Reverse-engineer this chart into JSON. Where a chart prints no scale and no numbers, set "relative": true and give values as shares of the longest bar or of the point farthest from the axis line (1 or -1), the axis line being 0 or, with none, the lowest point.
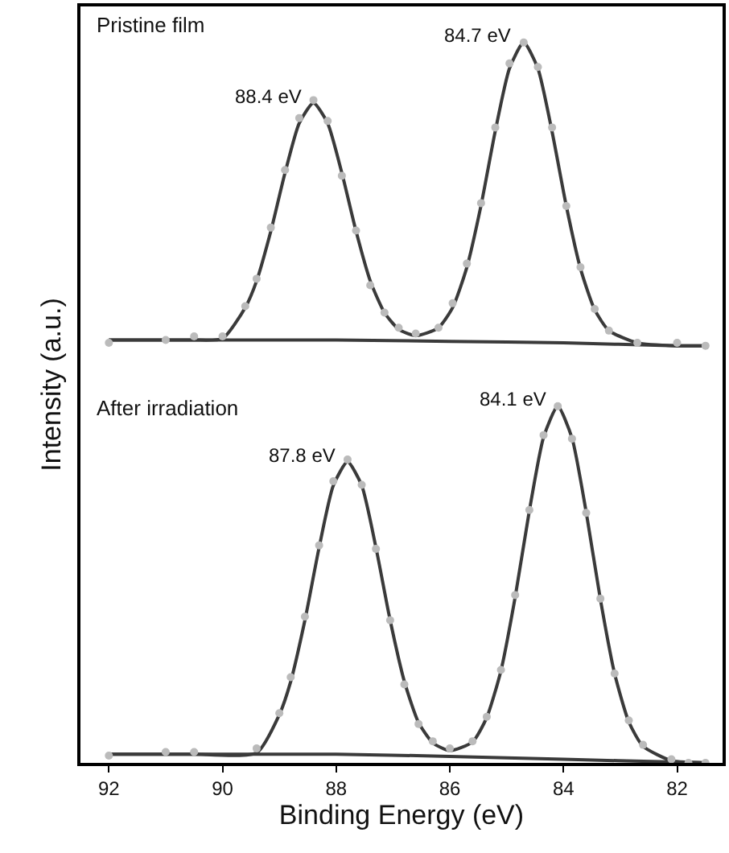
{
  "chart_data": {
    "type": "line",
    "title": "Pristine film",
    "xlabel": "Binding Energy (eV)",
    "ylabel": "Intensity (a.u.)",
    "relative": true,
    "xlim": [
      92.5,
      81.2
    ],
    "xticks": [
      92,
      90,
      88,
      86,
      84,
      82
    ],
    "series": [
      {
        "type": "scatter",
        "marker": "circle",
        "color": "#bbbbbb",
        "x": [
          92,
          91,
          90.5,
          90,
          89.6,
          89.4,
          89.15,
          88.9,
          88.65,
          88.4,
          88.15,
          87.9,
          87.65,
          87.4,
          87.15,
          86.9,
          86.6,
          86.2,
          85.95,
          85.7,
          85.45,
          85.2,
          84.95,
          84.7,
          84.45,
          84.2,
          83.95,
          83.7,
          83.45,
          83.2,
          82.7,
          82,
          81.5
        ],
        "values": [
          0.583,
          0.587,
          0.592,
          0.592,
          0.634,
          0.672,
          0.743,
          0.823,
          0.895,
          0.92,
          0.891,
          0.815,
          0.739,
          0.663,
          0.625,
          0.604,
          0.596,
          0.604,
          0.638,
          0.693,
          0.777,
          0.882,
          0.971,
          1.0,
          0.966,
          0.882,
          0.773,
          0.688,
          0.63,
          0.6,
          0.583,
          0.583,
          0.579
        ]
      },
      {
        "type": "line",
        "color": "#3a3a3a",
        "x": [
          92,
          91,
          90.5,
          90,
          89.6,
          89.4,
          89.15,
          88.9,
          88.65,
          88.4,
          88.15,
          87.9,
          87.65,
          87.4,
          87.15,
          86.9,
          86.6,
          86.2,
          85.95,
          85.7,
          85.45,
          85.2,
          84.95,
          84.7,
          84.45,
          84.2,
          83.95,
          83.7,
          83.45,
          83.2,
          82.7,
          82,
          81.5
        ],
        "values": [
          0.587,
          0.587,
          0.587,
          0.589,
          0.632,
          0.669,
          0.738,
          0.819,
          0.888,
          0.916,
          0.888,
          0.819,
          0.738,
          0.669,
          0.625,
          0.602,
          0.593,
          0.604,
          0.632,
          0.688,
          0.774,
          0.877,
          0.964,
          1.0,
          0.964,
          0.876,
          0.773,
          0.686,
          0.629,
          0.6,
          0.583,
          0.579,
          0.579
        ]
      },
      {
        "type": "line",
        "color": "#3a3a3a",
        "x": [
          92,
          88,
          86,
          84,
          82,
          81.5
        ],
        "values": [
          0.587,
          0.587,
          0.585,
          0.583,
          0.579,
          0.579
        ]
      },
      {
        "type": "scatter",
        "marker": "circle",
        "color": "#bbbbbb",
        "x": [
          92,
          91,
          90.5,
          89.4,
          89.0,
          88.8,
          88.55,
          88.3,
          88.05,
          87.8,
          87.55,
          87.3,
          87.05,
          86.8,
          86.55,
          86.3,
          86.0,
          85.6,
          85.35,
          85.1,
          84.85,
          84.6,
          84.35,
          84.1,
          83.85,
          83.6,
          83.35,
          83.1,
          82.85,
          82.6,
          82.1,
          81.8,
          81.5
        ],
        "values": [
          0.01,
          0.015,
          0.015,
          0.02,
          0.069,
          0.119,
          0.203,
          0.302,
          0.391,
          0.421,
          0.386,
          0.297,
          0.198,
          0.109,
          0.054,
          0.03,
          0.02,
          0.03,
          0.064,
          0.129,
          0.233,
          0.351,
          0.455,
          0.495,
          0.45,
          0.347,
          0.228,
          0.124,
          0.059,
          0.025,
          0.005,
          0.0,
          0.0
        ]
      },
      {
        "type": "line",
        "color": "#3a3a3a",
        "x": [
          92,
          91,
          90.5,
          89.4,
          89.0,
          88.8,
          88.55,
          88.3,
          88.05,
          87.8,
          87.55,
          87.3,
          87.05,
          86.8,
          86.55,
          86.3,
          86.0,
          85.6,
          85.35,
          85.1,
          84.85,
          84.6,
          84.35,
          84.1,
          83.85,
          83.6,
          83.35,
          83.1,
          82.85,
          82.6,
          82.1,
          81.8,
          81.5
        ],
        "values": [
          0.012,
          0.012,
          0.012,
          0.014,
          0.067,
          0.113,
          0.198,
          0.299,
          0.385,
          0.418,
          0.385,
          0.299,
          0.198,
          0.113,
          0.056,
          0.028,
          0.017,
          0.029,
          0.063,
          0.128,
          0.23,
          0.35,
          0.452,
          0.495,
          0.451,
          0.348,
          0.227,
          0.124,
          0.057,
          0.023,
          0.003,
          0.001,
          0.0
        ]
      },
      {
        "type": "line",
        "color": "#3a3a3a",
        "x": [
          92,
          88,
          86,
          84,
          82,
          81.5
        ],
        "values": [
          0.012,
          0.012,
          0.009,
          0.005,
          0.001,
          0.0
        ]
      }
    ],
    "annotations": [
      "After irradiation",
      {
        "text": "88.4 eV",
        "x": 88.4,
        "y": 0.916
      },
      {
        "text": "84.7 eV",
        "x": 84.7,
        "y": 1.0
      },
      {
        "text": "87.8 eV",
        "x": 87.8,
        "y": 0.418
      },
      {
        "text": "84.1 eV",
        "x": 84.1,
        "y": 0.495
      }
    ]
  }
}
